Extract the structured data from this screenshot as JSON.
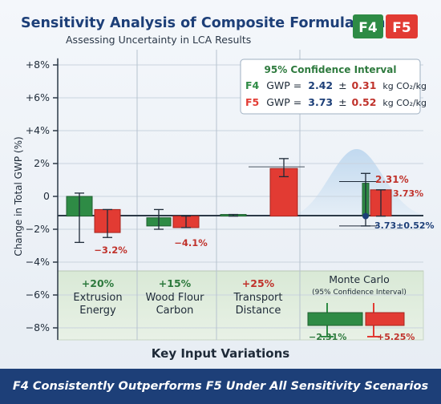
{
  "header": {
    "title": "Sensitivity Analysis of Composite Formulations",
    "subtitle": "Assessing Uncertainty in LCA Results",
    "badge_f4": "F4",
    "badge_f5": "F5"
  },
  "colors": {
    "f4": "#2e8b45",
    "f5": "#e23b33",
    "navy": "#1d3f78",
    "band": "#dcead8"
  },
  "ci_box": {
    "title": "95% Confidence Interval",
    "rows": [
      {
        "label": "F4",
        "metric": "GWP =",
        "mean": "2.42",
        "pm": "±",
        "err": "0.31",
        "unit": "kg CO₂/kg"
      },
      {
        "label": "F5",
        "metric": "GWP =",
        "mean": "3.73",
        "pm": "±",
        "err": "0.52",
        "unit": "kg CO₂/kg"
      }
    ]
  },
  "categories": [
    {
      "line1": "+20%",
      "line2": "Extrusion",
      "line3": "Energy"
    },
    {
      "line1": "+15%",
      "line2": "Wood Flour",
      "line3": "Carbon"
    },
    {
      "line1": "+25%",
      "line2": "Transport",
      "line3": "Distance"
    },
    {
      "line1": "Monte Carlo",
      "line2": "(95% Confidence Interval)",
      "line3": ""
    }
  ],
  "footer": {
    "xlabel": "Key Input Variations",
    "banner": "F4 Consistently Outperforms F5 Under All Sensitivity Scenarios"
  },
  "chart_data": {
    "type": "bar",
    "ylabel": "Change in Total GWP (%)",
    "ylim": [
      -9,
      9
    ],
    "y_ticks": [
      "+8%",
      "+6%",
      "+4%",
      "2%",
      "0",
      "−2%",
      "−4%",
      "−6%",
      "−8%"
    ],
    "y_tick_values": [
      8,
      6,
      4,
      2,
      0,
      -2,
      -4,
      -6,
      -8
    ],
    "baseline": -1.2,
    "series_names": [
      "F4",
      "F5"
    ],
    "bars": [
      {
        "series": "F4",
        "cat": 0,
        "top": 0.0,
        "bottom": -1.2,
        "err_hi": 0.2,
        "err_lo": -2.8,
        "label": ""
      },
      {
        "series": "F5",
        "cat": 0,
        "top": -0.8,
        "bottom": -2.2,
        "err_hi": -0.8,
        "err_lo": -2.5,
        "label": "−3.2%"
      },
      {
        "series": "F4",
        "cat": 1,
        "top": -1.3,
        "bottom": -1.8,
        "err_hi": -0.8,
        "err_lo": -2.0,
        "label": ""
      },
      {
        "series": "F5",
        "cat": 1,
        "top": -1.2,
        "bottom": -1.9,
        "err_hi": -1.2,
        "err_lo": -1.9,
        "label": "−4.1%"
      },
      {
        "series": "F4",
        "cat": 2,
        "top": -1.1,
        "bottom": -1.2,
        "err_hi": -1.1,
        "err_lo": -1.2,
        "label": ""
      },
      {
        "series": "F5",
        "cat": 2,
        "top": 1.7,
        "bottom": -1.2,
        "err_hi": 2.3,
        "err_lo": 1.2,
        "label": ""
      },
      {
        "series": "F4",
        "cat": 3,
        "top": 0.8,
        "bottom": -1.2,
        "err_hi": 1.4,
        "err_lo": -1.8,
        "label": ""
      },
      {
        "series": "F5",
        "cat": 3,
        "top": 0.4,
        "bottom": -1.2,
        "err_hi": 0.4,
        "err_lo": -1.2,
        "label": "3.73%"
      }
    ],
    "monte_carlo_labels": {
      "upper": "2.31%",
      "lower": "3.73±0.52%",
      "mc_f4": "−2.31%",
      "mc_f5": "+5.25%"
    }
  }
}
